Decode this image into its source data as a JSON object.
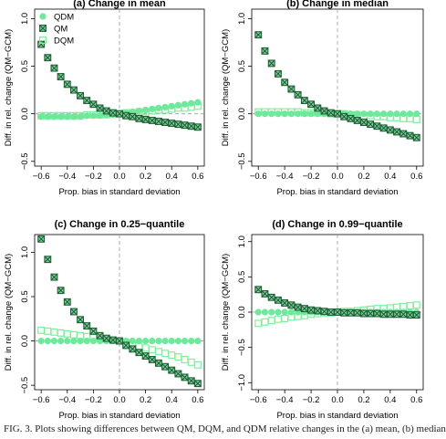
{
  "caption": "FIG. 3. Plots showing differences between QM, DQM, and QDM relative changes in the (a) mean, (b) median",
  "colors": {
    "qdm": "#6ee89a",
    "qm": "#1f5f36",
    "qm_fill": "#7fd29b",
    "dqm": "#7ef09a",
    "guide": "#9a9a9a"
  },
  "legend": [
    {
      "label": "QDM",
      "marker": "filled-circle"
    },
    {
      "label": "QM",
      "marker": "crossed-square"
    },
    {
      "label": "DQM",
      "marker": "open-square"
    }
  ],
  "chart_data": [
    {
      "type": "scatter",
      "title": "(a) Change in mean",
      "xlabel": "Prop. bias in standard deviation",
      "ylabel": "Diff. in rel. change (QM−GCM)",
      "xlim": [
        -0.65,
        0.65
      ],
      "ylim": [
        -0.55,
        1.1
      ],
      "xticks": [
        "−0.6",
        "−0.4",
        "−0.2",
        "0.0",
        "0.2",
        "0.4",
        "0.6"
      ],
      "yticks": [
        "−0.5",
        "0.0",
        "0.5",
        "1.0"
      ],
      "legend_position": "top-left",
      "series": [
        {
          "name": "QDM",
          "marker": "filled-circle",
          "x": [
            -0.6,
            -0.55,
            -0.5,
            -0.45,
            -0.4,
            -0.35,
            -0.3,
            -0.25,
            -0.2,
            -0.15,
            -0.1,
            -0.05,
            0.0,
            0.05,
            0.1,
            0.15,
            0.2,
            0.25,
            0.3,
            0.35,
            0.4,
            0.45,
            0.5,
            0.55,
            0.6
          ],
          "y": [
            -0.03,
            -0.03,
            -0.03,
            -0.03,
            -0.03,
            -0.03,
            -0.03,
            -0.02,
            -0.02,
            -0.02,
            -0.01,
            -0.01,
            0.0,
            0.01,
            0.02,
            0.03,
            0.04,
            0.05,
            0.06,
            0.07,
            0.08,
            0.09,
            0.1,
            0.11,
            0.12
          ]
        },
        {
          "name": "QM",
          "marker": "crossed-square",
          "x": [
            -0.6,
            -0.55,
            -0.5,
            -0.45,
            -0.4,
            -0.35,
            -0.3,
            -0.25,
            -0.2,
            -0.15,
            -0.1,
            -0.05,
            0.0,
            0.05,
            0.1,
            0.15,
            0.2,
            0.25,
            0.3,
            0.35,
            0.4,
            0.45,
            0.5,
            0.55,
            0.6
          ],
          "y": [
            0.73,
            0.59,
            0.48,
            0.39,
            0.31,
            0.25,
            0.19,
            0.14,
            0.1,
            0.06,
            0.03,
            0.01,
            0.0,
            -0.02,
            -0.03,
            -0.05,
            -0.06,
            -0.07,
            -0.08,
            -0.09,
            -0.1,
            -0.11,
            -0.12,
            -0.13,
            -0.14
          ]
        },
        {
          "name": "DQM",
          "marker": "open-square",
          "x": [
            -0.6,
            -0.55,
            -0.5,
            -0.45,
            -0.4,
            -0.35,
            -0.3,
            -0.25,
            -0.2,
            -0.15,
            -0.1,
            -0.05,
            0.0,
            0.05,
            0.1,
            0.15,
            0.2,
            0.25,
            0.3,
            0.35,
            0.4,
            0.45,
            0.5,
            0.55,
            0.6
          ],
          "y": [
            -0.02,
            -0.02,
            -0.02,
            -0.02,
            -0.02,
            -0.02,
            -0.02,
            -0.01,
            -0.01,
            -0.01,
            -0.01,
            0.0,
            0.0,
            0.01,
            0.01,
            0.02,
            0.02,
            0.03,
            0.04,
            0.04,
            0.05,
            0.06,
            0.06,
            0.07,
            0.08
          ]
        }
      ]
    },
    {
      "type": "scatter",
      "title": "(b) Change in median",
      "xlabel": "Prop. bias in standard deviation",
      "ylabel": "Diff. in rel. change (QM−GCM)",
      "xlim": [
        -0.65,
        0.65
      ],
      "ylim": [
        -0.55,
        1.1
      ],
      "xticks": [
        "−0.6",
        "−0.4",
        "−0.2",
        "0.0",
        "0.2",
        "0.4",
        "0.6"
      ],
      "yticks": [
        "−0.5",
        "0.0",
        "0.5",
        "1.0"
      ],
      "series": [
        {
          "name": "QDM",
          "marker": "filled-circle",
          "x": [
            -0.6,
            -0.55,
            -0.5,
            -0.45,
            -0.4,
            -0.35,
            -0.3,
            -0.25,
            -0.2,
            -0.15,
            -0.1,
            -0.05,
            0.0,
            0.05,
            0.1,
            0.15,
            0.2,
            0.25,
            0.3,
            0.35,
            0.4,
            0.45,
            0.5,
            0.55,
            0.6
          ],
          "y": [
            0.0,
            0.0,
            0.0,
            0.0,
            0.0,
            0.0,
            0.0,
            0.0,
            0.0,
            0.0,
            0.0,
            0.0,
            0.0,
            0.0,
            0.0,
            0.0,
            0.0,
            0.0,
            0.0,
            0.0,
            0.0,
            0.0,
            0.0,
            0.0,
            0.0
          ]
        },
        {
          "name": "QM",
          "marker": "crossed-square",
          "x": [
            -0.6,
            -0.55,
            -0.5,
            -0.45,
            -0.4,
            -0.35,
            -0.3,
            -0.25,
            -0.2,
            -0.15,
            -0.1,
            -0.05,
            0.0,
            0.05,
            0.1,
            0.15,
            0.2,
            0.25,
            0.3,
            0.35,
            0.4,
            0.45,
            0.5,
            0.55,
            0.6
          ],
          "y": [
            0.83,
            0.66,
            0.53,
            0.42,
            0.33,
            0.26,
            0.2,
            0.14,
            0.1,
            0.06,
            0.03,
            0.01,
            0.0,
            -0.03,
            -0.05,
            -0.07,
            -0.09,
            -0.11,
            -0.13,
            -0.15,
            -0.17,
            -0.19,
            -0.21,
            -0.23,
            -0.25
          ]
        },
        {
          "name": "DQM",
          "marker": "open-square",
          "x": [
            -0.6,
            -0.55,
            -0.5,
            -0.45,
            -0.4,
            -0.35,
            -0.3,
            -0.25,
            -0.2,
            -0.15,
            -0.1,
            -0.05,
            0.0,
            0.05,
            0.1,
            0.15,
            0.2,
            0.25,
            0.3,
            0.35,
            0.4,
            0.45,
            0.5,
            0.55,
            0.6
          ],
          "y": [
            0.02,
            0.02,
            0.02,
            0.02,
            0.02,
            0.02,
            0.02,
            0.01,
            0.01,
            0.01,
            0.01,
            0.0,
            0.0,
            0.0,
            -0.01,
            -0.01,
            -0.02,
            -0.02,
            -0.03,
            -0.03,
            -0.04,
            -0.04,
            -0.05,
            -0.05,
            -0.06
          ]
        }
      ]
    },
    {
      "type": "scatter",
      "title": "(c) Change in 0.25−quantile",
      "xlabel": "Prop. bias in standard deviation",
      "ylabel": "Diff. in rel. change (QM−GCM)",
      "xlim": [
        -0.65,
        0.65
      ],
      "ylim": [
        -0.55,
        1.2
      ],
      "xticks": [
        "−0.6",
        "−0.4",
        "−0.2",
        "0.0",
        "0.2",
        "0.4",
        "0.6"
      ],
      "yticks": [
        "−0.5",
        "0.0",
        "0.5",
        "1.0"
      ],
      "series": [
        {
          "name": "QDM",
          "marker": "filled-circle",
          "x": [
            -0.6,
            -0.55,
            -0.5,
            -0.45,
            -0.4,
            -0.35,
            -0.3,
            -0.25,
            -0.2,
            -0.15,
            -0.1,
            -0.05,
            0.0,
            0.05,
            0.1,
            0.15,
            0.2,
            0.25,
            0.3,
            0.35,
            0.4,
            0.45,
            0.5,
            0.55,
            0.6
          ],
          "y": [
            0.0,
            0.0,
            0.0,
            0.0,
            0.0,
            0.0,
            0.0,
            0.0,
            0.0,
            0.0,
            0.0,
            0.0,
            0.0,
            0.0,
            0.0,
            0.0,
            0.0,
            0.0,
            0.0,
            0.0,
            0.0,
            0.0,
            0.0,
            0.0,
            0.0
          ]
        },
        {
          "name": "QM",
          "marker": "crossed-square",
          "x": [
            -0.6,
            -0.55,
            -0.5,
            -0.45,
            -0.4,
            -0.35,
            -0.3,
            -0.25,
            -0.2,
            -0.15,
            -0.1,
            -0.05,
            0.0,
            0.05,
            0.1,
            0.15,
            0.2,
            0.25,
            0.3,
            0.35,
            0.4,
            0.45,
            0.5,
            0.55,
            0.6
          ],
          "y": [
            1.15,
            0.92,
            0.72,
            0.57,
            0.44,
            0.33,
            0.24,
            0.17,
            0.11,
            0.06,
            0.03,
            0.01,
            0.0,
            -0.05,
            -0.09,
            -0.13,
            -0.17,
            -0.21,
            -0.25,
            -0.29,
            -0.33,
            -0.37,
            -0.41,
            -0.45,
            -0.48
          ]
        },
        {
          "name": "DQM",
          "marker": "open-square",
          "x": [
            -0.6,
            -0.55,
            -0.5,
            -0.45,
            -0.4,
            -0.35,
            -0.3,
            -0.25,
            -0.2,
            -0.15,
            -0.1,
            -0.05,
            0.0,
            0.05,
            0.1,
            0.15,
            0.2,
            0.25,
            0.3,
            0.35,
            0.4,
            0.45,
            0.5,
            0.55,
            0.6
          ],
          "y": [
            0.12,
            0.11,
            0.1,
            0.09,
            0.08,
            0.07,
            0.06,
            0.05,
            0.04,
            0.03,
            0.02,
            0.01,
            0.0,
            -0.02,
            -0.04,
            -0.06,
            -0.08,
            -0.1,
            -0.12,
            -0.14,
            -0.16,
            -0.18,
            -0.21,
            -0.24,
            -0.27
          ]
        }
      ]
    },
    {
      "type": "scatter",
      "title": "(d) Change in 0.99−quantile",
      "xlabel": "Prop. bias in standard deviation",
      "ylabel": "Diff. in rel. change (QM−GCM)",
      "xlim": [
        -0.65,
        0.65
      ],
      "ylim": [
        -1.1,
        1.1
      ],
      "xticks": [
        "−0.6",
        "−0.4",
        "−0.2",
        "0.0",
        "0.2",
        "0.4",
        "0.6"
      ],
      "yticks": [
        "−1.0",
        "−0.5",
        "0.0",
        "0.5",
        "1.0"
      ],
      "series": [
        {
          "name": "QDM",
          "marker": "filled-circle",
          "x": [
            -0.6,
            -0.55,
            -0.5,
            -0.45,
            -0.4,
            -0.35,
            -0.3,
            -0.25,
            -0.2,
            -0.15,
            -0.1,
            -0.05,
            0.0,
            0.05,
            0.1,
            0.15,
            0.2,
            0.25,
            0.3,
            0.35,
            0.4,
            0.45,
            0.5,
            0.55,
            0.6
          ],
          "y": [
            0.0,
            0.0,
            0.0,
            0.0,
            0.0,
            0.0,
            0.0,
            0.0,
            0.0,
            0.0,
            0.0,
            0.0,
            0.0,
            0.0,
            0.0,
            0.0,
            0.0,
            0.0,
            0.0,
            0.0,
            0.0,
            0.0,
            0.0,
            0.0,
            0.0
          ]
        },
        {
          "name": "QM",
          "marker": "crossed-square",
          "x": [
            -0.6,
            -0.55,
            -0.5,
            -0.45,
            -0.4,
            -0.35,
            -0.3,
            -0.25,
            -0.2,
            -0.15,
            -0.1,
            -0.05,
            0.0,
            0.05,
            0.1,
            0.15,
            0.2,
            0.25,
            0.3,
            0.35,
            0.4,
            0.45,
            0.5,
            0.55,
            0.6
          ],
          "y": [
            0.32,
            0.26,
            0.21,
            0.17,
            0.13,
            0.1,
            0.07,
            0.05,
            0.03,
            0.02,
            0.01,
            0.0,
            0.0,
            -0.01,
            -0.01,
            -0.01,
            -0.02,
            -0.02,
            -0.02,
            -0.03,
            -0.03,
            -0.03,
            -0.03,
            -0.04,
            -0.04
          ]
        },
        {
          "name": "DQM",
          "marker": "open-square",
          "x": [
            -0.6,
            -0.55,
            -0.5,
            -0.45,
            -0.4,
            -0.35,
            -0.3,
            -0.25,
            -0.2,
            -0.15,
            -0.1,
            -0.05,
            0.0,
            0.05,
            0.1,
            0.15,
            0.2,
            0.25,
            0.3,
            0.35,
            0.4,
            0.45,
            0.5,
            0.55,
            0.6
          ],
          "y": [
            -0.16,
            -0.14,
            -0.12,
            -0.1,
            -0.09,
            -0.07,
            -0.06,
            -0.05,
            -0.03,
            -0.02,
            -0.01,
            -0.01,
            0.0,
            0.01,
            0.01,
            0.02,
            0.03,
            0.04,
            0.05,
            0.05,
            0.06,
            0.07,
            0.08,
            0.09,
            0.1
          ]
        }
      ]
    }
  ]
}
